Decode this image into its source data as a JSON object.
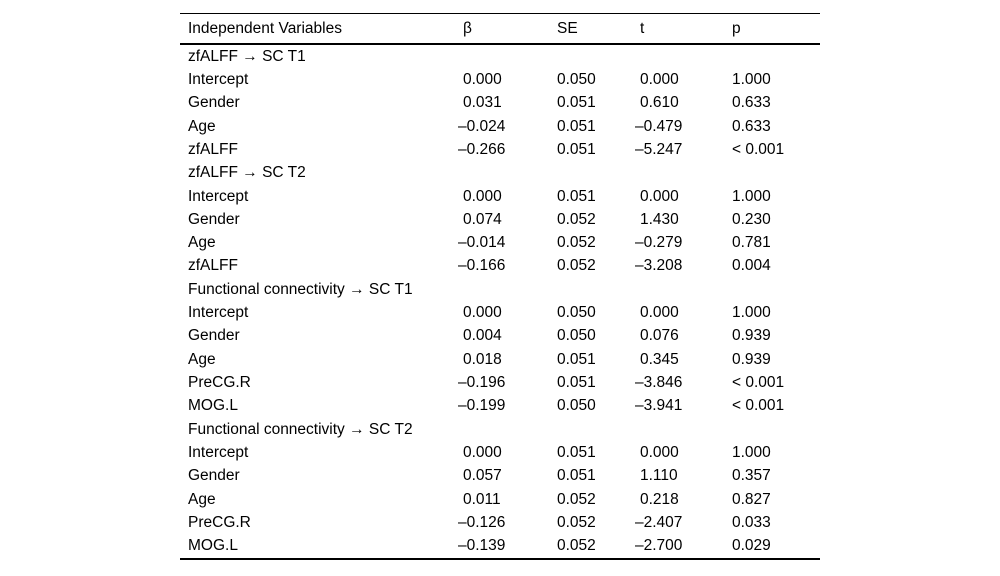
{
  "table": {
    "columns": [
      "Independent Variables",
      "β",
      "SE",
      "t",
      "p"
    ],
    "sections": [
      {
        "title": "zfALFF → SC T1",
        "rows": [
          {
            "var": "Intercept",
            "beta": "0.000",
            "se": "0.050",
            "t": "0.000",
            "p": "1.000"
          },
          {
            "var": "Gender",
            "beta": "0.031",
            "se": "0.051",
            "t": "0.610",
            "p": "0.633"
          },
          {
            "var": "Age",
            "beta": "–0.024",
            "se": "0.051",
            "t": "–0.479",
            "p": "0.633"
          },
          {
            "var": "zfALFF",
            "beta": "–0.266",
            "se": "0.051",
            "t": "–5.247",
            "p": "< 0.001"
          }
        ]
      },
      {
        "title": "zfALFF → SC T2",
        "rows": [
          {
            "var": "Intercept",
            "beta": "0.000",
            "se": "0.051",
            "t": "0.000",
            "p": "1.000"
          },
          {
            "var": "Gender",
            "beta": "0.074",
            "se": "0.052",
            "t": "1.430",
            "p": "0.230"
          },
          {
            "var": "Age",
            "beta": "–0.014",
            "se": "0.052",
            "t": "–0.279",
            "p": "0.781"
          },
          {
            "var": "zfALFF",
            "beta": "–0.166",
            "se": "0.052",
            "t": "–3.208",
            "p": "0.004"
          }
        ]
      },
      {
        "title": "Functional connectivity → SC T1",
        "rows": [
          {
            "var": "Intercept",
            "beta": "0.000",
            "se": "0.050",
            "t": "0.000",
            "p": "1.000"
          },
          {
            "var": "Gender",
            "beta": "0.004",
            "se": "0.050",
            "t": "0.076",
            "p": "0.939"
          },
          {
            "var": "Age",
            "beta": "0.018",
            "se": "0.051",
            "t": "0.345",
            "p": "0.939"
          },
          {
            "var": "PreCG.R",
            "beta": "–0.196",
            "se": "0.051",
            "t": "–3.846",
            "p": "< 0.001"
          },
          {
            "var": "MOG.L",
            "beta": "–0.199",
            "se": "0.050",
            "t": "–3.941",
            "p": "< 0.001"
          }
        ]
      },
      {
        "title": "Functional connectivity → SC T2",
        "rows": [
          {
            "var": "Intercept",
            "beta": "0.000",
            "se": "0.051",
            "t": "0.000",
            "p": "1.000"
          },
          {
            "var": "Gender",
            "beta": "0.057",
            "se": "0.051",
            "t": "1.110",
            "p": "0.357"
          },
          {
            "var": "Age",
            "beta": "0.011",
            "se": "0.052",
            "t": "0.218",
            "p": "0.827"
          },
          {
            "var": "PreCG.R",
            "beta": "–0.126",
            "se": "0.052",
            "t": "–2.407",
            "p": "0.033"
          },
          {
            "var": "MOG.L",
            "beta": "–0.139",
            "se": "0.052",
            "t": "–2.700",
            "p": "0.029"
          }
        ]
      }
    ]
  }
}
